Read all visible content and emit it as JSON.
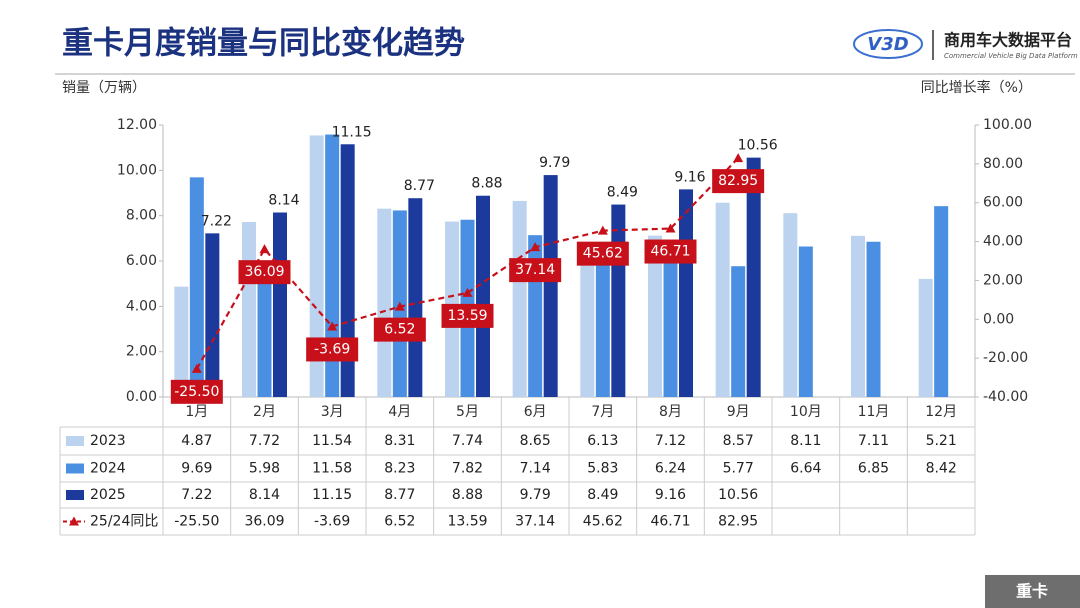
{
  "header": {
    "logo_mark": "V3D",
    "logo_text": "商用车大数据平台",
    "logo_subtitle": "Commercial Vehicle Big Data Platform"
  },
  "footer": {
    "tag": "重卡"
  },
  "chart_data": {
    "type": "bar",
    "title": "重卡月度销量与同比变化趋势",
    "y_label": "销量（万辆）",
    "y2_label": "同比增长率（%）",
    "categories": [
      "1月",
      "2月",
      "3月",
      "4月",
      "5月",
      "6月",
      "7月",
      "8月",
      "9月",
      "10月",
      "11月",
      "12月"
    ],
    "ylim": [
      0,
      12
    ],
    "yticks": [
      {
        "value": 0,
        "label": "0.00"
      },
      {
        "value": 2,
        "label": "2.00"
      },
      {
        "value": 4,
        "label": "4.00"
      },
      {
        "value": 6,
        "label": "6.00"
      },
      {
        "value": 8,
        "label": "8.00"
      },
      {
        "value": 10,
        "label": "10.00"
      },
      {
        "value": 12,
        "label": "12.00"
      }
    ],
    "y2lim": [
      -40,
      100
    ],
    "y2ticks": [
      {
        "value": -40,
        "label": "-40.00"
      },
      {
        "value": -20,
        "label": "-20.00"
      },
      {
        "value": 0,
        "label": "0.00"
      },
      {
        "value": 20,
        "label": "20.00"
      },
      {
        "value": 40,
        "label": "40.00"
      },
      {
        "value": 60,
        "label": "60.00"
      },
      {
        "value": 80,
        "label": "80.00"
      },
      {
        "value": 100,
        "label": "100.00"
      }
    ],
    "grid": false,
    "series": [
      {
        "name": "2023",
        "type": "bar",
        "color": "#bcd3f0",
        "values": [
          4.87,
          7.72,
          11.54,
          8.31,
          7.74,
          8.65,
          6.13,
          7.12,
          8.57,
          8.11,
          7.11,
          5.21
        ]
      },
      {
        "name": "2024",
        "type": "bar",
        "color": "#4b8fe2",
        "values": [
          9.69,
          5.98,
          11.58,
          8.23,
          7.82,
          7.14,
          5.83,
          6.24,
          5.77,
          6.64,
          6.85,
          8.42
        ]
      },
      {
        "name": "2025",
        "type": "bar",
        "color": "#1b3a9c",
        "show_labels": true,
        "values": [
          7.22,
          8.14,
          11.15,
          8.77,
          8.88,
          9.79,
          8.49,
          9.16,
          10.56,
          null,
          null,
          null
        ]
      },
      {
        "name": "25/24同比",
        "type": "line",
        "axis": "y2",
        "color": "#c8101a",
        "dashed": true,
        "show_labels": true,
        "values": [
          -25.5,
          36.09,
          -3.69,
          6.52,
          13.59,
          37.14,
          45.62,
          46.71,
          82.95,
          null,
          null,
          null
        ],
        "value_labels": [
          "-25.50",
          "36.09",
          "-3.69",
          "6.52",
          "13.59",
          "37.14",
          "45.62",
          "46.71",
          "82.95",
          null,
          null,
          null
        ]
      }
    ]
  }
}
